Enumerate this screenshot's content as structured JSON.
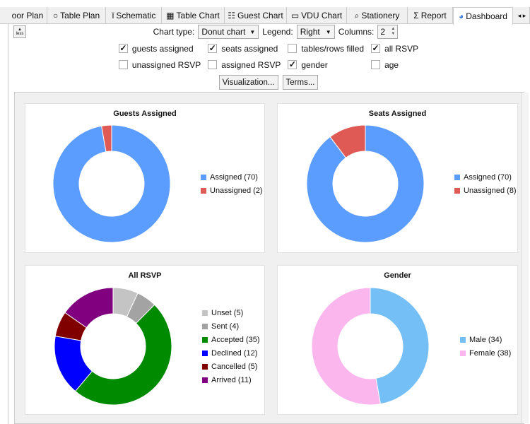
{
  "tabs": [
    {
      "label": "oor Plan",
      "icon": ""
    },
    {
      "label": "Table Plan",
      "icon": "circle-icon"
    },
    {
      "label": "Schematic",
      "icon": "schematic-icon"
    },
    {
      "label": "Table Chart",
      "icon": "grid-icon"
    },
    {
      "label": "Guest Chart",
      "icon": "list-grid-icon"
    },
    {
      "label": "VDU Chart",
      "icon": "monitor-icon"
    },
    {
      "label": "Stationery",
      "icon": "stationery-icon"
    },
    {
      "label": "Report",
      "icon": "sigma-icon"
    },
    {
      "label": "Dashboard",
      "icon": "pie-icon"
    }
  ],
  "active_tab": "Dashboard",
  "less_label": "less",
  "controls": {
    "chart_type_label": "Chart type:",
    "chart_type": "Donut chart",
    "legend_label": "Legend:",
    "legend": "Right",
    "columns_label": "Columns:",
    "columns": "2"
  },
  "checkboxes": [
    {
      "label": "guests assigned",
      "checked": true
    },
    {
      "label": "seats assigned",
      "checked": true
    },
    {
      "label": "tables/rows filled",
      "checked": false
    },
    {
      "label": "all RSVP",
      "checked": true
    },
    {
      "label": "unassigned RSVP",
      "checked": false
    },
    {
      "label": "assigned RSVP",
      "checked": false
    },
    {
      "label": "gender",
      "checked": true
    },
    {
      "label": "age",
      "checked": false
    }
  ],
  "buttons": {
    "visualization": "Visualization...",
    "terms": "Terms..."
  },
  "chart_data": [
    {
      "type": "donut",
      "title": "Guests Assigned",
      "legend": "right",
      "series": [
        {
          "name": "Assigned (70)",
          "value": 70,
          "color": "#5b9cff"
        },
        {
          "name": "Unassigned (2)",
          "value": 2,
          "color": "#e05a55"
        }
      ]
    },
    {
      "type": "donut",
      "title": "Seats Assigned",
      "legend": "right",
      "series": [
        {
          "name": "Assigned (70)",
          "value": 70,
          "color": "#5b9cff"
        },
        {
          "name": "Unassigned (8)",
          "value": 8,
          "color": "#e05a55"
        }
      ]
    },
    {
      "type": "donut",
      "title": "All RSVP",
      "legend": "right",
      "series": [
        {
          "name": "Unset (5)",
          "value": 5,
          "color": "#c4c4c4"
        },
        {
          "name": "Sent (4)",
          "value": 4,
          "color": "#a3a3a3"
        },
        {
          "name": "Accepted (35)",
          "value": 35,
          "color": "#008a00"
        },
        {
          "name": "Declined (12)",
          "value": 12,
          "color": "#0000ff"
        },
        {
          "name": "Cancelled (5)",
          "value": 5,
          "color": "#800000"
        },
        {
          "name": "Arrived (11)",
          "value": 11,
          "color": "#800080"
        }
      ]
    },
    {
      "type": "donut",
      "title": "Gender",
      "legend": "right",
      "series": [
        {
          "name": "Male (34)",
          "value": 34,
          "color": "#74bff5"
        },
        {
          "name": "Female (38)",
          "value": 38,
          "color": "#fbb6ee"
        }
      ]
    }
  ]
}
